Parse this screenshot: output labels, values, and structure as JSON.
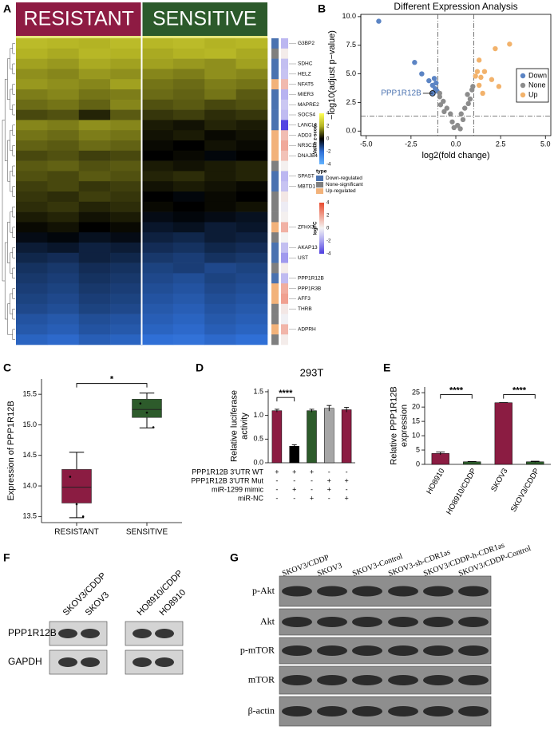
{
  "chart_data": [
    {
      "type": "heatmap",
      "panel": "A",
      "groups": [
        "RESISTANT",
        "SENSITIVE"
      ],
      "group_colors": [
        "#8e1b43",
        "#2c5a2b"
      ],
      "z": [
        [
          2.2,
          2.1,
          2.0,
          2.2,
          2.1,
          2.2,
          2.0,
          2.1
        ],
        [
          2.0,
          1.9,
          2.1,
          2.0,
          1.9,
          2.0,
          2.1,
          1.9
        ],
        [
          1.8,
          1.7,
          1.9,
          1.8,
          1.8,
          1.7,
          1.6,
          1.8
        ],
        [
          1.6,
          1.5,
          1.7,
          1.6,
          1.5,
          1.4,
          1.6,
          1.5
        ],
        [
          1.7,
          1.6,
          1.5,
          1.8,
          1.3,
          1.2,
          1.4,
          1.3
        ],
        [
          1.4,
          1.5,
          1.3,
          1.4,
          1.2,
          1.1,
          1.3,
          1.0
        ],
        [
          1.2,
          1.3,
          1.1,
          1.5,
          0.9,
          1.0,
          0.8,
          0.9
        ],
        [
          0.8,
          0.9,
          0.4,
          1.0,
          0.6,
          0.7,
          0.5,
          0.6
        ],
        [
          1.5,
          1.4,
          1.6,
          1.5,
          0.3,
          0.2,
          0.4,
          0.3
        ],
        [
          1.3,
          1.2,
          1.4,
          1.3,
          0.2,
          0.3,
          0.1,
          0.2
        ],
        [
          1.1,
          1.0,
          1.2,
          1.1,
          0.1,
          0.0,
          0.2,
          0.1
        ],
        [
          0.8,
          0.9,
          0.7,
          0.8,
          0.0,
          0.1,
          -0.1,
          0.0
        ],
        [
          1.0,
          1.1,
          0.9,
          1.0,
          0.3,
          0.2,
          0.3,
          0.4
        ],
        [
          0.9,
          0.8,
          1.0,
          0.9,
          0.4,
          0.5,
          0.3,
          0.4
        ],
        [
          0.7,
          0.8,
          0.6,
          0.7,
          0.2,
          0.3,
          0.2,
          0.1
        ],
        [
          0.6,
          0.5,
          0.7,
          0.6,
          0.0,
          -0.1,
          0.1,
          0.0
        ],
        [
          0.5,
          0.6,
          0.4,
          0.5,
          0.1,
          0.0,
          0.1,
          0.2
        ],
        [
          0.3,
          0.4,
          0.2,
          0.3,
          -0.2,
          -0.1,
          -0.2,
          -0.3
        ],
        [
          0.1,
          0.2,
          0.0,
          0.1,
          -0.4,
          -0.3,
          -0.5,
          -0.4
        ],
        [
          -0.2,
          -0.1,
          -0.3,
          -0.2,
          -0.6,
          -0.7,
          -0.5,
          -0.6
        ],
        [
          -0.5,
          -0.4,
          -0.6,
          -0.5,
          -0.8,
          -0.9,
          -0.7,
          -0.8
        ],
        [
          -0.7,
          -0.8,
          -0.6,
          -0.7,
          -1.0,
          -1.1,
          -0.9,
          -1.0
        ],
        [
          -0.9,
          -1.0,
          -0.8,
          -0.9,
          -1.2,
          -1.1,
          -1.3,
          -1.2
        ],
        [
          -1.0,
          -1.1,
          -0.9,
          -1.0,
          -1.3,
          -1.4,
          -1.2,
          -1.3
        ],
        [
          -1.1,
          -1.2,
          -1.0,
          -1.1,
          -1.4,
          -1.5,
          -1.3,
          -1.4
        ],
        [
          -1.2,
          -1.3,
          -1.1,
          -1.2,
          -1.5,
          -1.6,
          -1.4,
          -1.5
        ],
        [
          -1.3,
          -1.4,
          -1.2,
          -1.3,
          -1.6,
          -1.7,
          -1.5,
          -1.6
        ],
        [
          -1.5,
          -1.6,
          -1.4,
          -1.5,
          -1.7,
          -1.8,
          -1.6,
          -1.7
        ],
        [
          -1.6,
          -1.7,
          -1.5,
          -1.6,
          -1.8,
          -1.9,
          -1.7,
          -1.8
        ],
        [
          -1.8,
          -1.9,
          -1.7,
          -1.8,
          -2.0,
          -2.1,
          -1.9,
          -2.0
        ]
      ],
      "row_type": [
        0,
        1,
        0,
        0,
        2,
        0,
        0,
        0,
        0,
        2,
        2,
        2,
        1,
        0,
        0,
        1,
        1,
        1,
        2,
        1,
        0,
        0,
        1,
        0,
        2,
        2,
        1,
        1,
        2,
        1
      ],
      "row_logfc": [
        -1.5,
        0.2,
        -1.3,
        -1.2,
        1.4,
        -1.6,
        -1.1,
        -1.4,
        -3.8,
        1.3,
        1.8,
        1.2,
        0.1,
        -1.5,
        -1.2,
        0.3,
        -0.2,
        0.1,
        1.6,
        0.0,
        -1.3,
        -2.2,
        0.2,
        -1.4,
        1.7,
        2.0,
        0.3,
        -0.1,
        1.5,
        0.2
      ],
      "gene_labels": [
        {
          "row": 0,
          "text": "G3BP2"
        },
        {
          "row": 2,
          "text": "SDHC"
        },
        {
          "row": 3,
          "text": "HELZ"
        },
        {
          "row": 4,
          "text": "NFAT5"
        },
        {
          "row": 5,
          "text": "MIER3"
        },
        {
          "row": 6,
          "text": "MAPRE2"
        },
        {
          "row": 7,
          "text": "SOCS4"
        },
        {
          "row": 8,
          "text": "LANCL1"
        },
        {
          "row": 9,
          "text": "ADD3"
        },
        {
          "row": 10,
          "text": "NR3C1"
        },
        {
          "row": 11,
          "text": "DNAJB4"
        },
        {
          "row": 13,
          "text": "SPAST"
        },
        {
          "row": 14,
          "text": "MBTD1"
        },
        {
          "row": 18,
          "text": "ZFHX3"
        },
        {
          "row": 20,
          "text": "AKAP13"
        },
        {
          "row": 21,
          "text": "UST"
        },
        {
          "row": 23,
          "text": "PPP1R12B"
        },
        {
          "row": 24,
          "text": "PPP1R3B"
        },
        {
          "row": 25,
          "text": "AFF3"
        },
        {
          "row": 26,
          "text": "THRB"
        },
        {
          "row": 28,
          "text": "ADPRH"
        }
      ],
      "z_title": "Value z-score",
      "zticks": [
        -4,
        -2,
        0,
        2,
        4
      ],
      "zcolors": [
        "#62b2ff",
        "#2f6fd6",
        "#000000",
        "#b3b324",
        "#ffff55"
      ],
      "type_title": "type",
      "type_names": [
        "Down-regulated",
        "None-significant",
        "Up-regulated"
      ],
      "type_colors": [
        "#4a72b0",
        "#7f7f7f",
        "#f2b27a"
      ],
      "logfc_title": "logFC",
      "logfc_ticks": [
        -4,
        -2,
        0,
        2,
        4
      ],
      "logfc_colors": [
        "#4b3be0",
        "#a9a3f0",
        "#f4f4f4",
        "#f0a090",
        "#e84a2e"
      ]
    },
    {
      "type": "scatter",
      "panel": "B",
      "title": "Different Expression Analysis",
      "xlabel": "log2(fold change)",
      "ylabel": "−log10(adjust p−value)",
      "xlim": [
        -5.3,
        5.3
      ],
      "ylim": [
        -0.4,
        10.2
      ],
      "xticks": [
        {
          "value": -5,
          "label": "-5.0"
        },
        -2.5,
        {
          "value": 0,
          "label": "0.0"
        },
        2.5,
        {
          "value": 5,
          "label": "5.0"
        }
      ],
      "yticks": [
        {
          "value": 0,
          "label": "0.0"
        },
        2.5,
        {
          "value": 5,
          "label": "5.0"
        },
        7.5,
        {
          "value": 10,
          "label": "10.0"
        }
      ],
      "vlines": [
        -1,
        1
      ],
      "hline": 1.3,
      "legend": "right",
      "series": [
        {
          "name": "Down",
          "color": "#5b84c4",
          "x": [
            -4.3,
            -2.3,
            -1.9,
            -1.2,
            -1.1,
            -1.3,
            -1.15,
            -1.05,
            -1.3,
            -1.5
          ],
          "values": [
            9.6,
            6.0,
            5.0,
            4.6,
            4.2,
            4.0,
            3.7,
            3.5,
            3.3,
            4.4
          ]
        },
        {
          "name": "None",
          "color": "#8c8c8c",
          "x": [
            -0.9,
            -0.7,
            -0.85,
            -0.5,
            -0.3,
            0.3,
            0.5,
            0.8,
            0.65,
            0.9,
            -0.2,
            0.1,
            0.25,
            -0.1,
            0.4,
            -0.65,
            0.7,
            -0.9,
            0.95
          ],
          "values": [
            3.0,
            2.6,
            2.3,
            2.0,
            1.5,
            1.5,
            2.0,
            2.8,
            3.2,
            3.6,
            0.8,
            0.5,
            0.2,
            0.3,
            1.0,
            1.7,
            2.4,
            3.3,
            3.9
          ]
        },
        {
          "name": "Up",
          "color": "#f2b26b",
          "x": [
            3.0,
            2.2,
            1.3,
            1.2,
            1.6,
            1.4,
            2.0,
            1.1,
            1.3,
            2.4,
            1.5
          ],
          "values": [
            7.6,
            7.2,
            6.2,
            5.2,
            5.2,
            4.7,
            4.5,
            4.8,
            4.0,
            3.9,
            3.3
          ]
        }
      ],
      "annotation": {
        "text": "PPP1R12B",
        "x": -1.3,
        "y": 3.3,
        "color": "#4a72b0"
      }
    },
    {
      "type": "box",
      "panel": "C",
      "ylabel": "Expression of PPP1R12B",
      "categories": [
        "RESISTANT",
        "SENSITIVE"
      ],
      "colors": [
        "#8b1c42",
        "#2d5b2b"
      ],
      "ylim": [
        13.4,
        15.75
      ],
      "yticks": [
        13.5,
        {
          "value": 14,
          "label": "14.0"
        },
        14.5,
        {
          "value": 15,
          "label": "15.0"
        },
        15.5
      ],
      "boxes": [
        {
          "min": 13.48,
          "q1": 13.72,
          "median": 13.98,
          "q3": 14.27,
          "max": 14.55,
          "points": [
            14.15,
            13.7,
            13.5
          ]
        },
        {
          "min": 14.95,
          "q1": 15.12,
          "median": 15.25,
          "q3": 15.42,
          "max": 15.52,
          "points": [
            15.35,
            15.2,
            14.96
          ]
        }
      ],
      "annotations": [
        {
          "text": "*",
          "between": [
            0,
            1
          ]
        }
      ]
    },
    {
      "type": "bar",
      "panel": "D",
      "title": "293T",
      "ylabel": [
        "Relative luciferase",
        "activity"
      ],
      "ylim": [
        0,
        1.55
      ],
      "yticks": [
        {
          "value": 0,
          "label": "0.0"
        },
        0.5,
        {
          "value": 1,
          "label": "1.0"
        },
        1.5
      ],
      "values": [
        1.1,
        0.35,
        1.1,
        1.15,
        1.12
      ],
      "errors": [
        0.03,
        0.03,
        0.03,
        0.06,
        0.05
      ],
      "colors": [
        "#8b1c42",
        "#000000",
        "#2d5b2b",
        "#a6a6a6",
        "#8b1c42"
      ],
      "conditions": [
        {
          "label": "PPP1R12B 3'UTR WT",
          "signs": [
            "+",
            "+",
            "+",
            "-",
            "-"
          ]
        },
        {
          "label": "PPP1R12B 3'UTR Mut",
          "signs": [
            "-",
            "-",
            "-",
            "+",
            "+"
          ]
        },
        {
          "label": "miR-1299 mimic",
          "signs": [
            "-",
            "+",
            "-",
            "+",
            "-"
          ]
        },
        {
          "label": "miR-NC",
          "signs": [
            "-",
            "-",
            "+",
            "-",
            "+"
          ]
        }
      ],
      "annotations": [
        {
          "text": "****",
          "between": [
            0,
            1
          ]
        }
      ]
    },
    {
      "type": "bar",
      "panel": "E",
      "ylabel": [
        "Relative PPP1R12B",
        "expression"
      ],
      "categories": [
        "HO8910",
        "HO8910/CDDP",
        "SKOV3",
        "SKOV3/CDDP"
      ],
      "ylim": [
        0,
        27
      ],
      "yticks": [
        0,
        5,
        10,
        15,
        20,
        25
      ],
      "values": [
        3.8,
        0.9,
        21.5,
        0.9
      ],
      "errors": [
        0.5,
        0.1,
        0.05,
        0.2
      ],
      "colors": [
        "#8b1c42",
        "#2d5b2b",
        "#8b1c42",
        "#2d5b2b"
      ],
      "annotations": [
        {
          "text": "****",
          "between": [
            0,
            1
          ]
        },
        {
          "text": "****",
          "between": [
            2,
            3
          ]
        }
      ]
    }
  ],
  "blots": [
    {
      "panel": "F",
      "lanes": [
        "SKOV3/CDDP",
        "SKOV3",
        "HO8910/CDDP",
        "HO8910"
      ],
      "rows": [
        "PPP1R12B",
        "GAPDH"
      ]
    },
    {
      "panel": "G",
      "lanes": [
        "SKOV3/CDDP",
        "SKOV3",
        "SKOV3-Control",
        "SKOV3-sh-CDR1as",
        "SKOV3/CDDP-h-CDR1as",
        "SKOV3/CDDP-Control"
      ],
      "rows": [
        "p-Akt",
        "Akt",
        "p-mTOR",
        "mTOR",
        "β-actin"
      ]
    }
  ]
}
